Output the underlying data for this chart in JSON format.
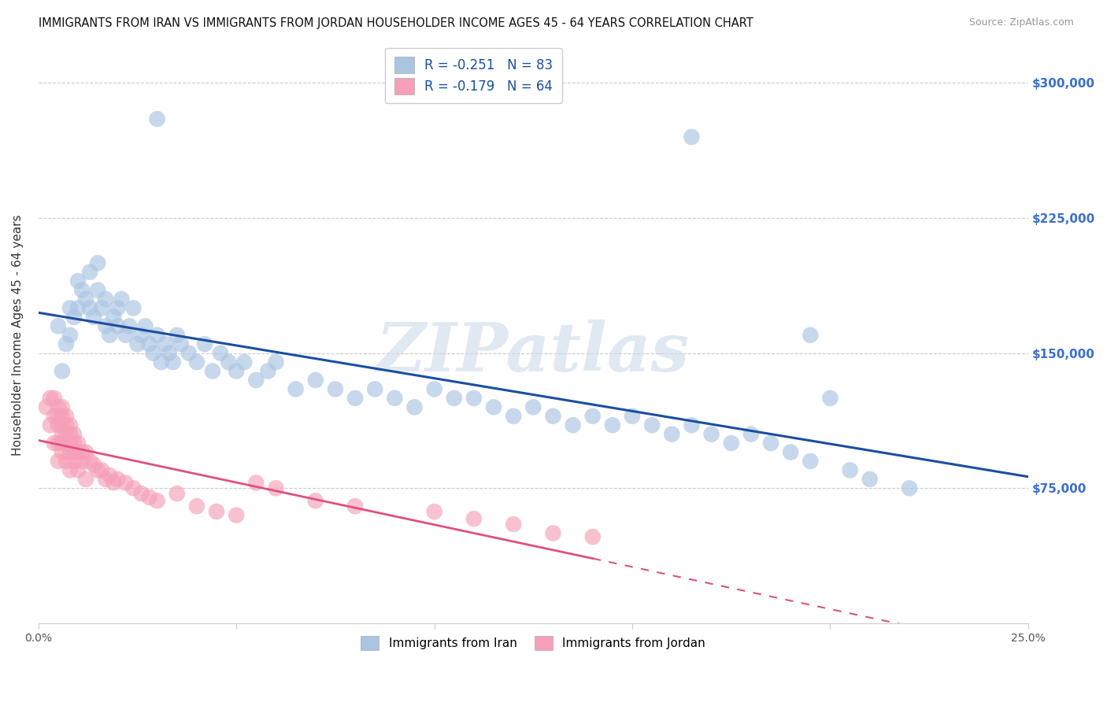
{
  "title": "IMMIGRANTS FROM IRAN VS IMMIGRANTS FROM JORDAN HOUSEHOLDER INCOME AGES 45 - 64 YEARS CORRELATION CHART",
  "source": "Source: ZipAtlas.com",
  "ylabel": "Householder Income Ages 45 - 64 years",
  "ytick_values": [
    75000,
    150000,
    225000,
    300000
  ],
  "ylim": [
    0,
    320000
  ],
  "xlim": [
    0.0,
    0.25
  ],
  "iran_R": -0.251,
  "iran_N": 83,
  "jordan_R": -0.179,
  "jordan_N": 64,
  "iran_color": "#aac4e2",
  "iran_line_color": "#1a4fa0",
  "jordan_color": "#f5a0b8",
  "jordan_line_color": "#e05080",
  "watermark": "ZIPatlas",
  "legend_label_iran": "Immigrants from Iran",
  "legend_label_jordan": "Immigrants from Jordan",
  "iran_x": [
    0.005,
    0.006,
    0.007,
    0.008,
    0.008,
    0.009,
    0.01,
    0.01,
    0.011,
    0.012,
    0.013,
    0.013,
    0.014,
    0.015,
    0.015,
    0.016,
    0.017,
    0.017,
    0.018,
    0.019,
    0.02,
    0.02,
    0.021,
    0.022,
    0.023,
    0.024,
    0.025,
    0.026,
    0.027,
    0.028,
    0.029,
    0.03,
    0.031,
    0.032,
    0.033,
    0.034,
    0.035,
    0.036,
    0.038,
    0.04,
    0.042,
    0.044,
    0.046,
    0.048,
    0.05,
    0.052,
    0.055,
    0.058,
    0.06,
    0.065,
    0.07,
    0.075,
    0.08,
    0.085,
    0.09,
    0.095,
    0.1,
    0.105,
    0.11,
    0.115,
    0.12,
    0.125,
    0.13,
    0.135,
    0.14,
    0.145,
    0.15,
    0.155,
    0.16,
    0.165,
    0.17,
    0.175,
    0.18,
    0.185,
    0.19,
    0.195,
    0.2,
    0.205,
    0.21,
    0.22,
    0.195,
    0.165,
    0.03
  ],
  "iran_y": [
    165000,
    140000,
    155000,
    160000,
    175000,
    170000,
    175000,
    190000,
    185000,
    180000,
    195000,
    175000,
    170000,
    185000,
    200000,
    175000,
    180000,
    165000,
    160000,
    170000,
    175000,
    165000,
    180000,
    160000,
    165000,
    175000,
    155000,
    160000,
    165000,
    155000,
    150000,
    160000,
    145000,
    155000,
    150000,
    145000,
    160000,
    155000,
    150000,
    145000,
    155000,
    140000,
    150000,
    145000,
    140000,
    145000,
    135000,
    140000,
    145000,
    130000,
    135000,
    130000,
    125000,
    130000,
    125000,
    120000,
    130000,
    125000,
    125000,
    120000,
    115000,
    120000,
    115000,
    110000,
    115000,
    110000,
    115000,
    110000,
    105000,
    110000,
    105000,
    100000,
    105000,
    100000,
    95000,
    90000,
    125000,
    85000,
    80000,
    75000,
    160000,
    270000,
    280000
  ],
  "jordan_x": [
    0.002,
    0.003,
    0.003,
    0.004,
    0.004,
    0.004,
    0.005,
    0.005,
    0.005,
    0.005,
    0.005,
    0.006,
    0.006,
    0.006,
    0.006,
    0.006,
    0.006,
    0.007,
    0.007,
    0.007,
    0.007,
    0.007,
    0.008,
    0.008,
    0.008,
    0.008,
    0.008,
    0.009,
    0.009,
    0.009,
    0.009,
    0.01,
    0.01,
    0.01,
    0.011,
    0.011,
    0.012,
    0.012,
    0.013,
    0.014,
    0.015,
    0.016,
    0.017,
    0.018,
    0.019,
    0.02,
    0.022,
    0.024,
    0.026,
    0.028,
    0.03,
    0.035,
    0.04,
    0.045,
    0.05,
    0.055,
    0.06,
    0.07,
    0.08,
    0.1,
    0.11,
    0.12,
    0.13,
    0.14
  ],
  "jordan_y": [
    120000,
    110000,
    125000,
    115000,
    100000,
    125000,
    110000,
    100000,
    115000,
    120000,
    90000,
    100000,
    110000,
    115000,
    120000,
    105000,
    95000,
    100000,
    110000,
    105000,
    115000,
    90000,
    100000,
    105000,
    110000,
    95000,
    85000,
    100000,
    105000,
    95000,
    90000,
    100000,
    95000,
    85000,
    95000,
    90000,
    95000,
    80000,
    90000,
    88000,
    85000,
    85000,
    80000,
    82000,
    78000,
    80000,
    78000,
    75000,
    72000,
    70000,
    68000,
    72000,
    65000,
    62000,
    60000,
    78000,
    75000,
    68000,
    65000,
    62000,
    58000,
    55000,
    50000,
    48000
  ]
}
